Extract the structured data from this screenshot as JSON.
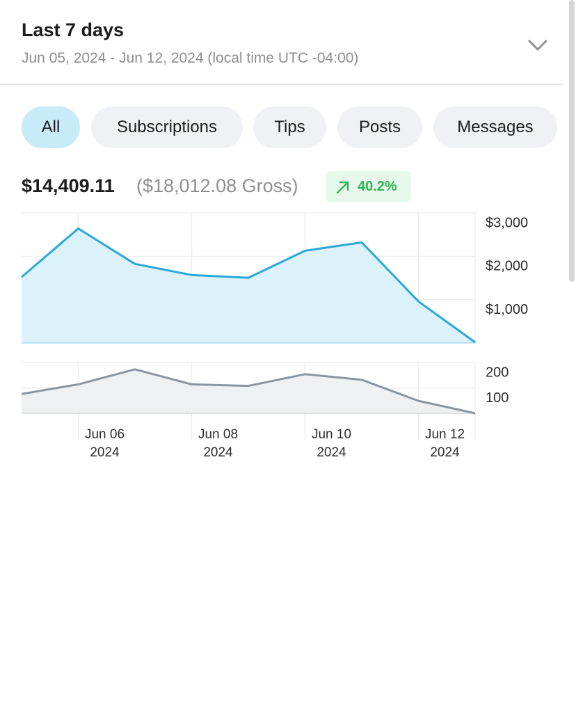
{
  "header": {
    "title": "Last 7 days",
    "subtitle": "Jun 05, 2024 - Jun 12, 2024 (local time UTC -04:00)"
  },
  "tabs": [
    "All",
    "Subscriptions",
    "Tips",
    "Posts",
    "Messages"
  ],
  "summary": {
    "net": "$14,409.11",
    "gross": "($18,012.08 Gross)",
    "change": "40.2%"
  },
  "chart_data": [
    {
      "type": "area",
      "color": "#2aa8d6",
      "fill": "#dbf2fb",
      "grid": true,
      "x": [
        "2024-06-05",
        "2024-06-06",
        "2024-06-07",
        "2024-06-08",
        "2024-06-09",
        "2024-06-10",
        "2024-06-11",
        "2024-06-12",
        "2024-06-13"
      ],
      "values": [
        1520,
        2640,
        1824,
        1568,
        1504,
        2128,
        2320,
        960,
        16
      ],
      "xlim": [
        "2024-06-05",
        "2024-06-13"
      ],
      "ylim": [
        0,
        3000
      ],
      "yticks": [
        {
          "value": 1000,
          "label": "$1,000"
        },
        {
          "value": 2000,
          "label": "$2,000"
        },
        {
          "value": 3000,
          "label": "$3,000"
        }
      ]
    },
    {
      "type": "area",
      "color": "#8b95a1",
      "fill": "#eff0f2",
      "grid": true,
      "x": [
        "2024-06-05",
        "2024-06-06",
        "2024-06-07",
        "2024-06-08",
        "2024-06-09",
        "2024-06-10",
        "2024-06-11",
        "2024-06-12",
        "2024-06-13"
      ],
      "values": [
        76,
        114,
        173,
        114,
        108,
        154,
        132,
        49,
        0
      ],
      "xlim": [
        "2024-06-05",
        "2024-06-13"
      ],
      "ylim": [
        0,
        200
      ],
      "yticks": [
        100,
        200
      ],
      "xticks": [
        {
          "value": "2024-06-06",
          "label": "Jun 06 2024"
        },
        {
          "value": "2024-06-08",
          "label": "Jun 08 2024"
        },
        {
          "value": "2024-06-10",
          "label": "Jun 10 2024"
        },
        {
          "value": "2024-06-12",
          "label": "Jun 12 2024"
        }
      ]
    }
  ]
}
